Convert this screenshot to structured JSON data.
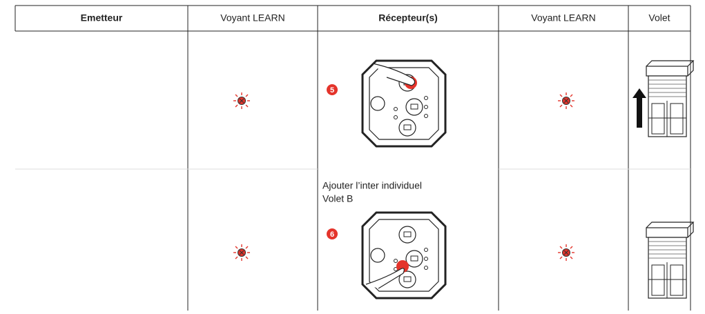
{
  "table": {
    "header": [
      "Emetteur",
      "Voyant LEARN",
      "Récepteur(s)",
      "Voyant LEARN",
      "Volet"
    ],
    "rows": [
      {
        "step": "5"
      },
      {
        "instruction": [
          "Ajouter l’inter individuel",
          "Volet B"
        ],
        "step": "6"
      }
    ]
  }
}
